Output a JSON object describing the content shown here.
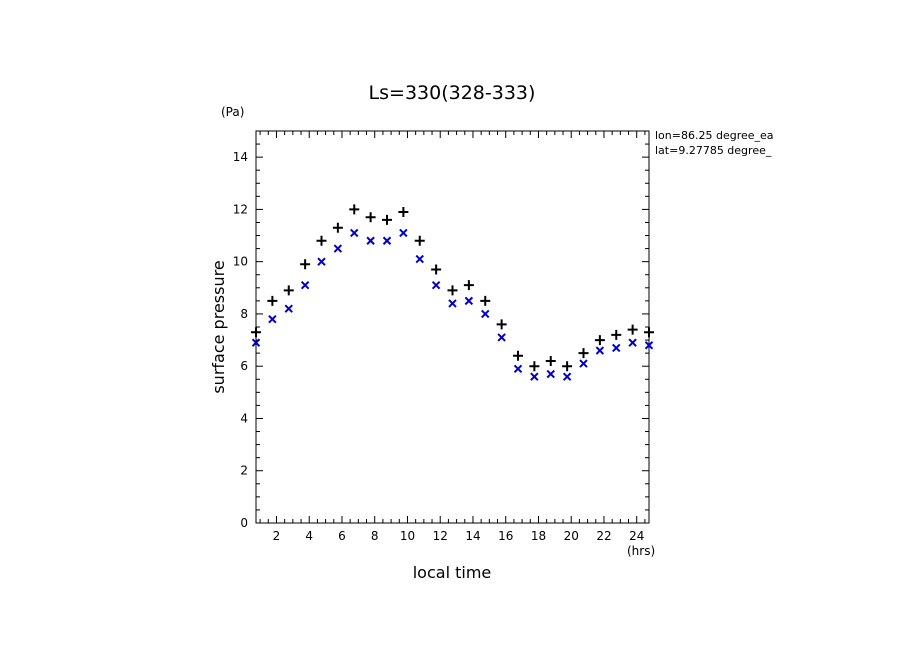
{
  "chart_data": {
    "type": "scatter",
    "title": "Ls=330(328-333)",
    "xlabel": "local time",
    "ylabel": "surface pressure",
    "x_unit": "(hrs)",
    "y_unit": "(Pa)",
    "annotations": [
      "lon=86.25 degree_ea",
      "lat=9.27785 degree_"
    ],
    "xlim": [
      0.75,
      24.75
    ],
    "ylim": [
      0,
      15
    ],
    "x_ticks": [
      2,
      4,
      6,
      8,
      10,
      12,
      14,
      16,
      18,
      20,
      22,
      24
    ],
    "y_ticks": [
      0,
      2,
      4,
      6,
      8,
      10,
      12,
      14
    ],
    "grid": false,
    "series": [
      {
        "marker": "plus",
        "color": "#000000",
        "x": [
          0.75,
          1.75,
          2.75,
          3.75,
          4.75,
          5.75,
          6.75,
          7.75,
          8.75,
          9.75,
          10.75,
          11.75,
          12.75,
          13.75,
          14.75,
          15.75,
          16.75,
          17.75,
          18.75,
          19.75,
          20.75,
          21.75,
          22.75,
          23.75,
          24.75
        ],
        "values": [
          7.3,
          8.5,
          8.9,
          9.9,
          10.8,
          11.3,
          12.0,
          11.7,
          11.6,
          11.9,
          10.8,
          9.7,
          8.9,
          9.1,
          8.5,
          7.6,
          6.4,
          6.0,
          6.2,
          6.0,
          6.5,
          7.0,
          7.2,
          7.4,
          7.3
        ]
      },
      {
        "marker": "x",
        "color": "#0000cc",
        "x": [
          0.75,
          1.75,
          2.75,
          3.75,
          4.75,
          5.75,
          6.75,
          7.75,
          8.75,
          9.75,
          10.75,
          11.75,
          12.75,
          13.75,
          14.75,
          15.75,
          16.75,
          17.75,
          18.75,
          19.75,
          20.75,
          21.75,
          22.75,
          23.75,
          24.75
        ],
        "values": [
          6.9,
          7.8,
          8.2,
          9.1,
          10.0,
          10.5,
          11.1,
          10.8,
          10.8,
          11.1,
          10.1,
          9.1,
          8.4,
          8.5,
          8.0,
          7.1,
          5.9,
          5.6,
          5.7,
          5.6,
          6.1,
          6.6,
          6.7,
          6.9,
          6.8
        ]
      }
    ]
  }
}
